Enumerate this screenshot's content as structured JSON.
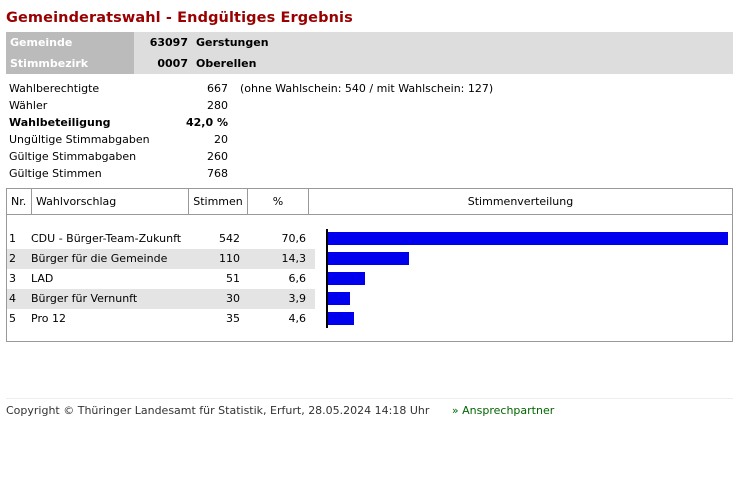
{
  "page_title": "Gemeinderatswahl - Endgültiges Ergebnis",
  "header": {
    "gemeinde_label": "Gemeinde",
    "gemeinde_nr": "63097",
    "gemeinde_name": "Gerstungen",
    "bezirk_label": "Stimmbezirk",
    "bezirk_nr": "0007",
    "bezirk_name": "Oberellen"
  },
  "stats": [
    {
      "label": "Wahlberechtigte",
      "value": "667",
      "note": "(ohne Wahlschein: 540 / mit Wahlschein: 127)",
      "bold": false
    },
    {
      "label": "Wähler",
      "value": "280",
      "note": "",
      "bold": false
    },
    {
      "label": "Wahlbeteiligung",
      "value": "42,0 %",
      "note": "",
      "bold": true
    },
    {
      "label": "Ungültige Stimmabgaben",
      "value": "20",
      "note": "",
      "bold": false
    },
    {
      "label": "Gültige Stimmabgaben",
      "value": "260",
      "note": "",
      "bold": false
    },
    {
      "label": "Gültige Stimmen",
      "value": "768",
      "note": "",
      "bold": false
    }
  ],
  "table": {
    "columns": [
      "Nr.",
      "Wahlvorschlag",
      "Stimmen",
      "%",
      "Stimmenverteilung"
    ],
    "rows": [
      {
        "nr": "1",
        "name": "CDU - Bürger-Team-Zukunft",
        "stimmen": "542",
        "pct": "70,6"
      },
      {
        "nr": "2",
        "name": "Bürger für die Gemeinde",
        "stimmen": "110",
        "pct": "14,3"
      },
      {
        "nr": "3",
        "name": "LAD",
        "stimmen": "51",
        "pct": "6,6"
      },
      {
        "nr": "4",
        "name": "Bürger für Vernunft",
        "stimmen": "30",
        "pct": "3,9"
      },
      {
        "nr": "5",
        "name": "Pro 12",
        "stimmen": "35",
        "pct": "4,6"
      }
    ]
  },
  "chart_data": {
    "type": "bar",
    "orientation": "horizontal",
    "categories": [
      "CDU - Bürger-Team-Zukunft",
      "Bürger für die Gemeinde",
      "LAD",
      "Bürger für Vernunft",
      "Pro 12"
    ],
    "values": [
      70.6,
      14.3,
      6.6,
      3.9,
      4.6
    ],
    "title": "Stimmenverteilung",
    "xlim": [
      0,
      70.6
    ],
    "bar_color": "#0000ee"
  },
  "footer": {
    "copyright": "Copyright © Thüringer Landesamt für Statistik, Erfurt, 28.05.2024 14:18 Uhr",
    "link": "» Ansprechpartner"
  },
  "colors": {
    "title": "#990000",
    "header_label_bg": "#bbbbbb",
    "header_value_bg": "#dddddd",
    "row_shade": "#e4e4e4",
    "link": "#006600"
  }
}
